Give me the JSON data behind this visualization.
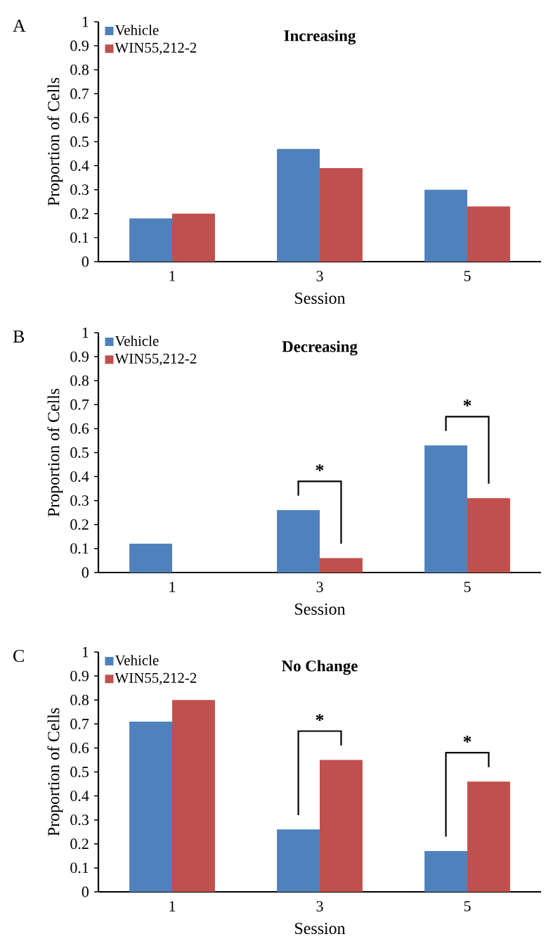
{
  "chart_data": [
    {
      "type": "bar",
      "title": "Increasing",
      "xlabel": "Session",
      "ylabel": "Proportion of Cells",
      "categories": [
        "1",
        "3",
        "5"
      ],
      "series": [
        {
          "name": "Vehicle",
          "color": "#4f81bd",
          "values": [
            0.18,
            0.47,
            0.3
          ]
        },
        {
          "name": "WIN55,212-2",
          "color": "#c0504d",
          "values": [
            0.2,
            0.39,
            0.23
          ]
        }
      ],
      "ylim": [
        0,
        1
      ],
      "yticks": [
        0,
        0.1,
        0.2,
        0.3,
        0.4,
        0.5,
        0.6,
        0.7,
        0.8,
        0.9,
        1
      ],
      "legend": "top left",
      "annotations": [
        "A"
      ]
    },
    {
      "type": "bar",
      "title": "Decreasing",
      "xlabel": "Session",
      "ylabel": "Proportion of Cells",
      "categories": [
        "1",
        "3",
        "5"
      ],
      "series": [
        {
          "name": "Vehicle",
          "color": "#4f81bd",
          "values": [
            0.12,
            0.26,
            0.53
          ]
        },
        {
          "name": "WIN55,212-2",
          "color": "#c0504d",
          "values": [
            0,
            0.06,
            0.31
          ]
        }
      ],
      "ylim": [
        0,
        1
      ],
      "yticks": [
        0,
        0.1,
        0.2,
        0.3,
        0.4,
        0.5,
        0.6,
        0.7,
        0.8,
        0.9,
        1
      ],
      "legend": "top left",
      "annotations": [
        "B",
        "*",
        "*"
      ]
    },
    {
      "type": "bar",
      "title": "No Change",
      "xlabel": "Session",
      "ylabel": "Proportion of Cells",
      "categories": [
        "1",
        "3",
        "5"
      ],
      "series": [
        {
          "name": "Vehicle",
          "color": "#4f81bd",
          "values": [
            0.71,
            0.26,
            0.17
          ]
        },
        {
          "name": "WIN55,212-2",
          "color": "#c0504d",
          "values": [
            0.8,
            0.55,
            0.46
          ]
        }
      ],
      "ylim": [
        0,
        1
      ],
      "yticks": [
        0,
        0.1,
        0.2,
        0.3,
        0.4,
        0.5,
        0.6,
        0.7,
        0.8,
        0.9,
        1
      ],
      "legend": "top left",
      "annotations": [
        "C",
        "*",
        "*"
      ]
    }
  ]
}
